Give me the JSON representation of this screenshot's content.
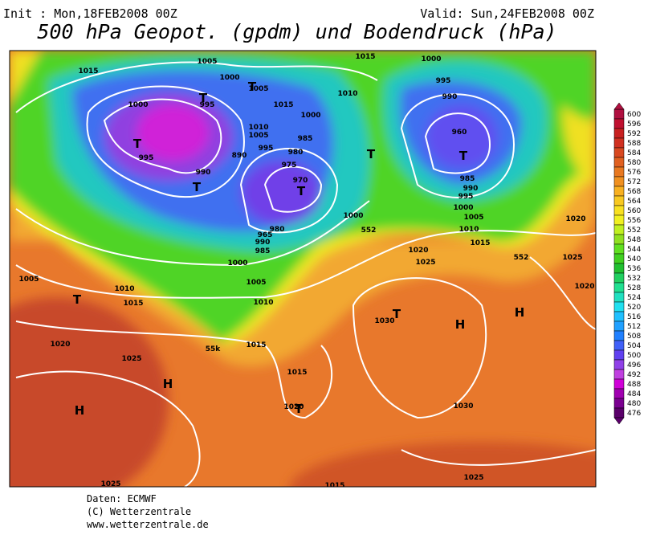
{
  "header": {
    "init": "Init : Mon,18FEB2008 00Z",
    "valid": "Valid: Sun,24FEB2008 00Z",
    "title": "500 hPa Geopot. (gpdm) und Bodendruck (hPa)"
  },
  "colorbar": {
    "ticks": [
      600,
      596,
      592,
      588,
      584,
      580,
      576,
      572,
      568,
      564,
      560,
      556,
      552,
      548,
      544,
      540,
      536,
      532,
      528,
      524,
      520,
      516,
      512,
      508,
      504,
      500,
      496,
      492,
      488,
      484,
      480,
      476
    ],
    "colors": [
      "#b01040",
      "#c01030",
      "#c82020",
      "#d03020",
      "#d84820",
      "#e06020",
      "#e87820",
      "#f09020",
      "#f8b020",
      "#f8c820",
      "#f8e020",
      "#f0f020",
      "#c0f020",
      "#90e020",
      "#60e020",
      "#40d020",
      "#20c030",
      "#20d060",
      "#20e090",
      "#20e0c0",
      "#20e0f0",
      "#20c0ff",
      "#20a0ff",
      "#2080ff",
      "#4060f8",
      "#6040f0",
      "#9040e8",
      "#c040e0",
      "#d000d8",
      "#a000b0",
      "#7a0090",
      "#5a006a"
    ]
  },
  "isobar_labels": [
    "1015",
    "1005",
    "1000",
    "1005",
    "1015",
    "1000",
    "995",
    "990",
    "1010",
    "1015",
    "1000",
    "995",
    "1000",
    "1010",
    "1005",
    "985",
    "995",
    "980",
    "890",
    "995",
    "975",
    "990",
    "970",
    "980",
    "965",
    "990",
    "985",
    "1000",
    "960",
    "985",
    "990",
    "995",
    "1000",
    "1005",
    "1010",
    "1015",
    "1020",
    "1025",
    "1000",
    "1005",
    "1010",
    "1005",
    "1010",
    "1015",
    "1020",
    "1025",
    "1015",
    "1030",
    "1015",
    "1020",
    "1030",
    "1025",
    "1025",
    "1015",
    "1020",
    "1025",
    "1020",
    "552",
    "552",
    "55k"
  ],
  "pressure_centers": [
    "T",
    "T",
    "T",
    "T",
    "T",
    "T",
    "T",
    "T",
    "T",
    "H",
    "H",
    "H",
    "H",
    "T"
  ],
  "footer": {
    "source": "Daten: ECMWF",
    "copyright": "(C) Wetterzentrale",
    "url": "www.wetterzentrale.de"
  }
}
